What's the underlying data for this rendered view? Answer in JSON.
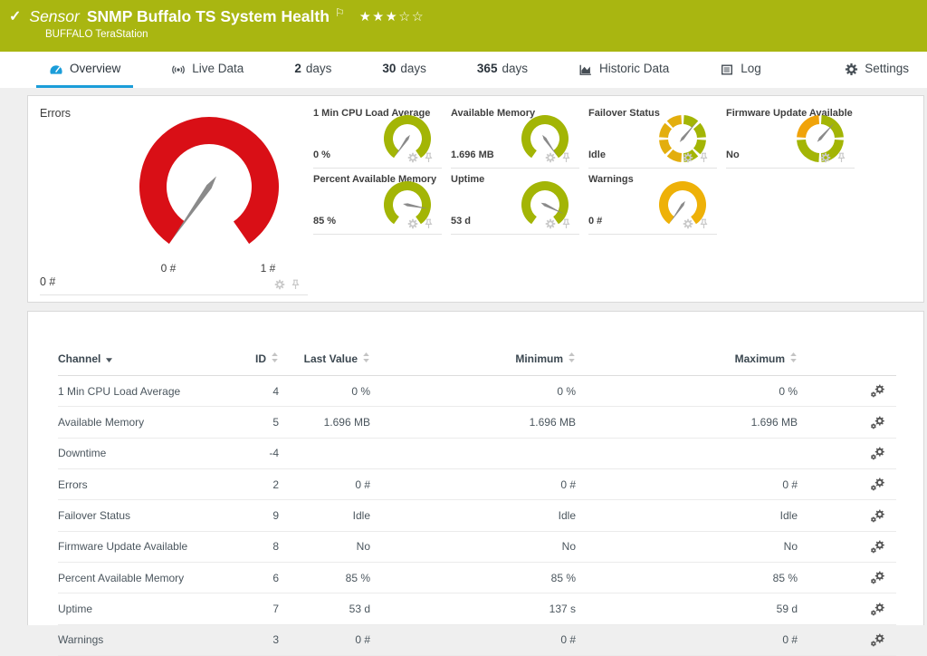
{
  "header": {
    "check": "✓",
    "kind": "Sensor",
    "title": "SNMP Buffalo TS System Health",
    "flag": "⚐",
    "stars": "★★★☆☆",
    "device": "BUFFALO TeraStation",
    "status_color": "#a9b611"
  },
  "tabs": [
    {
      "label": "Overview",
      "icon": "gauge-icon",
      "active": true
    },
    {
      "label": "Live Data",
      "icon": "broadcast-icon"
    },
    {
      "prefix": "2",
      "label": "days"
    },
    {
      "prefix": "30",
      "label": "days"
    },
    {
      "prefix": "365",
      "label": "days"
    },
    {
      "label": "Historic Data",
      "icon": "area-chart-icon"
    },
    {
      "label": "Log",
      "icon": "log-icon"
    },
    {
      "label": "Settings",
      "icon": "gear-icon"
    }
  ],
  "colors": {
    "accent_blue": "#1b9dd9",
    "gauge_red": "#d90f16",
    "gauge_green": "#a3b505",
    "gauge_amber": "#eeb108",
    "gauge_orange": "#f0a30a",
    "needle_gray": "#8a8a8a"
  },
  "chart_data": {
    "type": "gauges",
    "main_gauge": {
      "name": "Errors",
      "style": "arc",
      "color": "#d90f16",
      "value": 0,
      "value_label": "0 #",
      "min": 0,
      "max": 1,
      "scale_min_label": "0 #",
      "scale_max_label": "1 #",
      "needle_deg": 215
    },
    "small_gauges": [
      {
        "name": "1 Min CPU Load Average",
        "value_label": "0 %",
        "style": "arc",
        "color": "#a3b505",
        "needle_deg": 215
      },
      {
        "name": "Available Memory",
        "value_label": "1.696 MB",
        "style": "arc",
        "color": "#a3b505",
        "needle_deg": 145
      },
      {
        "name": "Failover Status",
        "value_label": "Idle",
        "style": "segments",
        "segment_colors": [
          "#a3b505",
          "#a3b505",
          "#a3b505",
          "#a3b505",
          "#e3ae0d",
          "#e3ae0d",
          "#e3ae0d",
          "#e3ae0d"
        ],
        "needle_deg": 40
      },
      {
        "name": "Firmware Update Available",
        "value_label": "No",
        "style": "segments",
        "segment_colors": [
          "#a3b505",
          "#a3b505",
          "#a3b505",
          "#f0a30a"
        ],
        "needle_deg": 42
      },
      {
        "name": "Percent Available Memory",
        "value_label": "85 %",
        "style": "arc",
        "color": "#a3b505",
        "needle_deg": 101
      },
      {
        "name": "Uptime",
        "value_label": "53 d",
        "style": "arc",
        "color": "#a3b505",
        "needle_deg": 116
      },
      {
        "name": "Warnings",
        "value_label": "0 #",
        "style": "arc",
        "color": "#eeb108",
        "needle_deg": 215
      }
    ]
  },
  "table": {
    "columns": [
      {
        "key": "channel",
        "label": "Channel",
        "sort": "desc",
        "align": "left"
      },
      {
        "key": "id",
        "label": "ID",
        "sort": "both",
        "align": "right"
      },
      {
        "key": "last",
        "label": "Last Value",
        "sort": "both",
        "align": "right"
      },
      {
        "key": "min",
        "label": "Minimum",
        "sort": "both",
        "align": "right"
      },
      {
        "key": "max",
        "label": "Maximum",
        "sort": "both",
        "align": "right"
      },
      {
        "key": "actions",
        "label": "",
        "align": "right"
      }
    ],
    "rows": [
      {
        "channel": "1 Min CPU Load Average",
        "id": "4",
        "last": "0 %",
        "min": "0 %",
        "max": "0 %"
      },
      {
        "channel": "Available Memory",
        "id": "5",
        "last": "1.696 MB",
        "min": "1.696 MB",
        "max": "1.696 MB"
      },
      {
        "channel": "Downtime",
        "id": "-4",
        "last": "",
        "min": "",
        "max": ""
      },
      {
        "channel": "Errors",
        "id": "2",
        "last": "0 #",
        "min": "0 #",
        "max": "0 #"
      },
      {
        "channel": "Failover Status",
        "id": "9",
        "last": "Idle",
        "min": "Idle",
        "max": "Idle"
      },
      {
        "channel": "Firmware Update Available",
        "id": "8",
        "last": "No",
        "min": "No",
        "max": "No"
      },
      {
        "channel": "Percent Available Memory",
        "id": "6",
        "last": "85 %",
        "min": "85 %",
        "max": "85 %"
      },
      {
        "channel": "Uptime",
        "id": "7",
        "last": "53 d",
        "min": "137 s",
        "max": "59 d"
      },
      {
        "channel": "Warnings",
        "id": "3",
        "last": "0 #",
        "min": "0 #",
        "max": "0 #"
      }
    ]
  }
}
